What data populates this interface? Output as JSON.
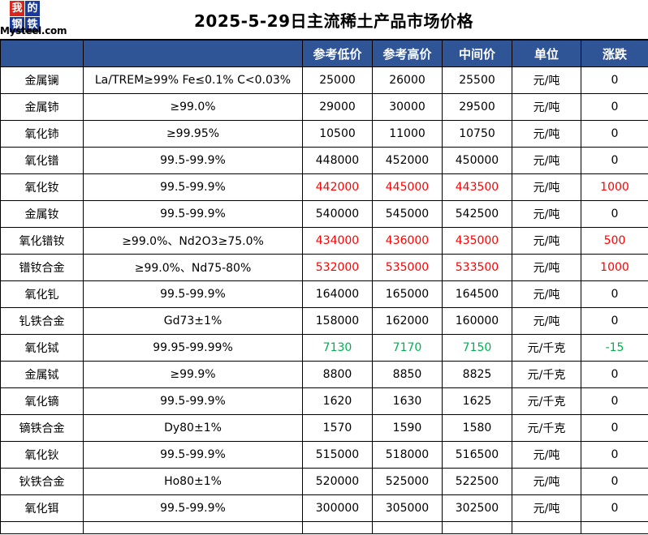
{
  "title": "2025-5-29日主流稀土产品市场价格",
  "logo": {
    "chars": [
      "我",
      "的",
      "钢",
      "铁"
    ],
    "text": "Mysteel.com"
  },
  "headers": [
    "",
    "",
    "参考低价",
    "参考高价",
    "中间价",
    "单位",
    "涨跌"
  ],
  "rows": [
    {
      "name": "金属镧",
      "spec": "La/TREM≥99% Fe≤0.1% C<0.03%",
      "low": "25000",
      "high": "26000",
      "mid": "25500",
      "unit": "元/吨",
      "change": "0",
      "tone": "normal"
    },
    {
      "name": "金属铈",
      "spec": "≥99.0%",
      "low": "29000",
      "high": "30000",
      "mid": "29500",
      "unit": "元/吨",
      "change": "0",
      "tone": "normal"
    },
    {
      "name": "氧化铈",
      "spec": "≥99.95%",
      "low": "10500",
      "high": "11000",
      "mid": "10750",
      "unit": "元/吨",
      "change": "0",
      "tone": "normal"
    },
    {
      "name": "氧化镨",
      "spec": "99.5-99.9%",
      "low": "448000",
      "high": "452000",
      "mid": "450000",
      "unit": "元/吨",
      "change": "0",
      "tone": "normal"
    },
    {
      "name": "氧化钕",
      "spec": "99.5-99.9%",
      "low": "442000",
      "high": "445000",
      "mid": "443500",
      "unit": "元/吨",
      "change": "1000",
      "tone": "up"
    },
    {
      "name": "金属钕",
      "spec": "99.5-99.9%",
      "low": "540000",
      "high": "545000",
      "mid": "542500",
      "unit": "元/吨",
      "change": "0",
      "tone": "normal"
    },
    {
      "name": "氧化镨钕",
      "spec": "≥99.0%、Nd2O3≥75.0%",
      "low": "434000",
      "high": "436000",
      "mid": "435000",
      "unit": "元/吨",
      "change": "500",
      "tone": "up"
    },
    {
      "name": "镨钕合金",
      "spec": "≥99.0%、Nd75-80%",
      "low": "532000",
      "high": "535000",
      "mid": "533500",
      "unit": "元/吨",
      "change": "1000",
      "tone": "up"
    },
    {
      "name": "氧化钆",
      "spec": "99.5-99.9%",
      "low": "164000",
      "high": "165000",
      "mid": "164500",
      "unit": "元/吨",
      "change": "0",
      "tone": "normal"
    },
    {
      "name": "钆铁合金",
      "spec": "Gd73±1%",
      "low": "158000",
      "high": "162000",
      "mid": "160000",
      "unit": "元/吨",
      "change": "0",
      "tone": "normal"
    },
    {
      "name": "氧化铽",
      "spec": "99.95-99.99%",
      "low": "7130",
      "high": "7170",
      "mid": "7150",
      "unit": "元/千克",
      "change": "-15",
      "tone": "down"
    },
    {
      "name": "金属铽",
      "spec": "≥99.9%",
      "low": "8800",
      "high": "8850",
      "mid": "8825",
      "unit": "元/千克",
      "change": "0",
      "tone": "normal"
    },
    {
      "name": "氧化镝",
      "spec": "99.5-99.9%",
      "low": "1620",
      "high": "1630",
      "mid": "1625",
      "unit": "元/千克",
      "change": "0",
      "tone": "normal"
    },
    {
      "name": "镝铁合金",
      "spec": "Dy80±1%",
      "low": "1570",
      "high": "1590",
      "mid": "1580",
      "unit": "元/千克",
      "change": "0",
      "tone": "normal"
    },
    {
      "name": "氧化钬",
      "spec": "99.5-99.9%",
      "low": "515000",
      "high": "518000",
      "mid": "516500",
      "unit": "元/吨",
      "change": "0",
      "tone": "normal"
    },
    {
      "name": "钬铁合金",
      "spec": "Ho80±1%",
      "low": "520000",
      "high": "525000",
      "mid": "522500",
      "unit": "元/吨",
      "change": "0",
      "tone": "normal"
    },
    {
      "name": "氧化铒",
      "spec": "99.5-99.9%",
      "low": "300000",
      "high": "305000",
      "mid": "302500",
      "unit": "元/吨",
      "change": "0",
      "tone": "normal"
    }
  ],
  "colors": {
    "header_bg": "#2f5597",
    "up": "#ff0000",
    "down": "#00b050"
  }
}
